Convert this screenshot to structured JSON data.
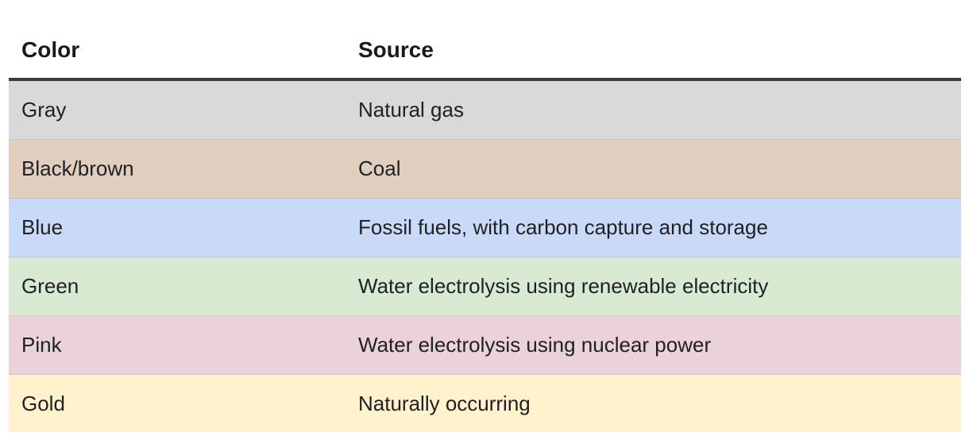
{
  "table": {
    "headers": [
      "Color",
      "Source"
    ],
    "rows": [
      {
        "color": "Gray",
        "source": "Natural gas",
        "bg": "#d9d9d9"
      },
      {
        "color": "Black/brown",
        "source": "Coal",
        "bg": "#e0cfbe"
      },
      {
        "color": "Blue",
        "source": "Fossil fuels, with carbon capture and storage",
        "bg": "#c9daf8"
      },
      {
        "color": "Green",
        "source": "Water electrolysis using renewable electricity",
        "bg": "#d9ead3"
      },
      {
        "color": "Pink",
        "source": "Water electrolysis using nuclear power",
        "bg": "#ead1dc"
      },
      {
        "color": "Gold",
        "source": "Naturally occurring",
        "bg": "#fff2cc"
      }
    ]
  }
}
